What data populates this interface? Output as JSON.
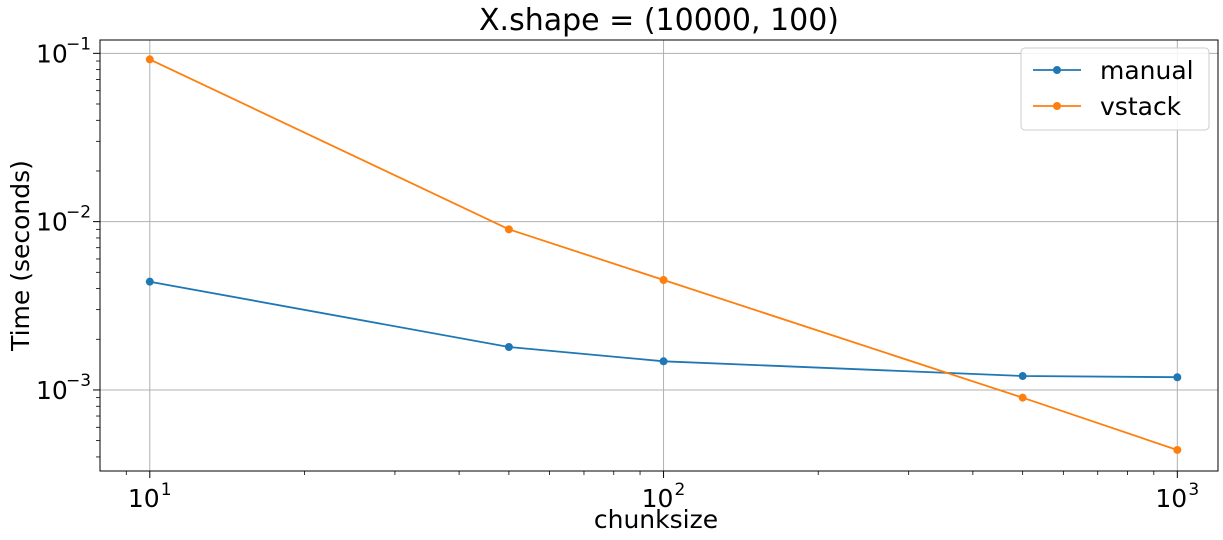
{
  "chart_data": {
    "type": "line",
    "title": "X.shape = (10000, 100)",
    "xlabel": "chunksize",
    "ylabel": "Time (seconds)",
    "xscale": "log",
    "yscale": "log",
    "xlim": [
      8,
      1200
    ],
    "ylim": [
      0.00033,
      0.12
    ],
    "grid": true,
    "legend_position": "top-right",
    "x_ticks": [
      {
        "value": 10,
        "base": "10",
        "exp": "1"
      },
      {
        "value": 100,
        "base": "10",
        "exp": "2"
      },
      {
        "value": 1000,
        "base": "10",
        "exp": "3"
      }
    ],
    "y_ticks": [
      {
        "value": 0.001,
        "base": "10",
        "exp": "−3"
      },
      {
        "value": 0.01,
        "base": "10",
        "exp": "−2"
      },
      {
        "value": 0.1,
        "base": "10",
        "exp": "−1"
      }
    ],
    "series": [
      {
        "name": "manual",
        "color": "#1f77b4",
        "x": [
          10,
          50,
          100,
          500,
          1000
        ],
        "y": [
          0.0044,
          0.0018,
          0.00148,
          0.00121,
          0.00119
        ]
      },
      {
        "name": "vstack",
        "color": "#ff7f0e",
        "x": [
          10,
          50,
          100,
          500,
          1000
        ],
        "y": [
          0.092,
          0.009,
          0.0045,
          0.0009,
          0.00044
        ]
      }
    ]
  }
}
